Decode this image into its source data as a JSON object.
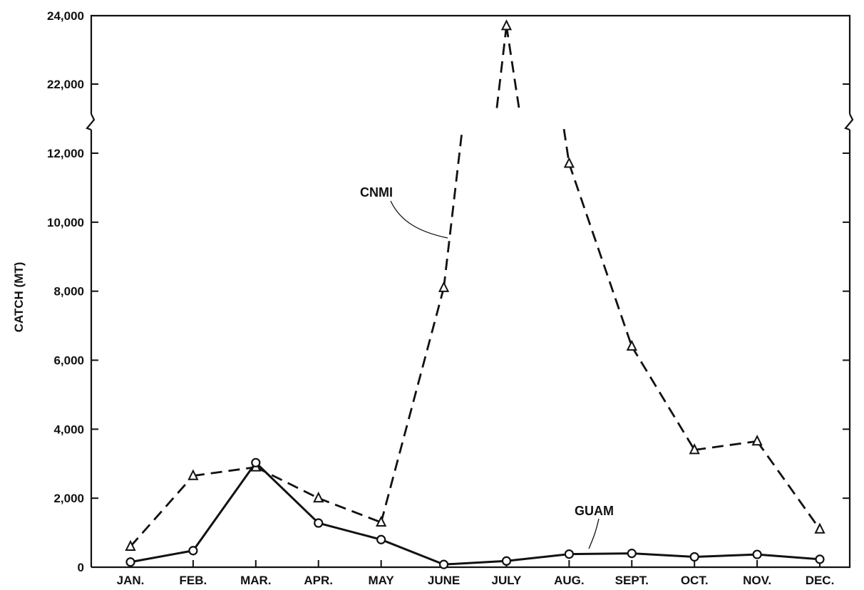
{
  "chart_data": {
    "type": "line",
    "title": "",
    "xlabel": "",
    "ylabel": "CATCH (MT)",
    "categories": [
      "JAN.",
      "FEB.",
      "MAR.",
      "APR.",
      "MAY",
      "JUNE",
      "JULY",
      "AUG.",
      "SEPT.",
      "OCT.",
      "NOV.",
      "DEC."
    ],
    "y_axis": {
      "broken": true,
      "lower_range": [
        0,
        12700
      ],
      "upper_range": [
        21300,
        24000
      ],
      "tick_values": [
        0,
        2000,
        4000,
        6000,
        8000,
        10000,
        12000,
        22000,
        24000
      ],
      "tick_labels": [
        "0",
        "2,000",
        "4,000",
        "6,000",
        "8,000",
        "10,000",
        "12,000",
        "22,000",
        "24,000"
      ]
    },
    "grid": false,
    "legend": "none",
    "series": [
      {
        "name": "CNMI",
        "style": "dashed",
        "marker": "triangle",
        "values": [
          600,
          2650,
          2900,
          2000,
          1300,
          8100,
          23700,
          11700,
          6400,
          3400,
          3650,
          1100
        ]
      },
      {
        "name": "GUAM",
        "style": "solid",
        "marker": "circle",
        "values": [
          150,
          480,
          3030,
          1280,
          800,
          80,
          180,
          380,
          400,
          300,
          370,
          230
        ]
      }
    ]
  }
}
